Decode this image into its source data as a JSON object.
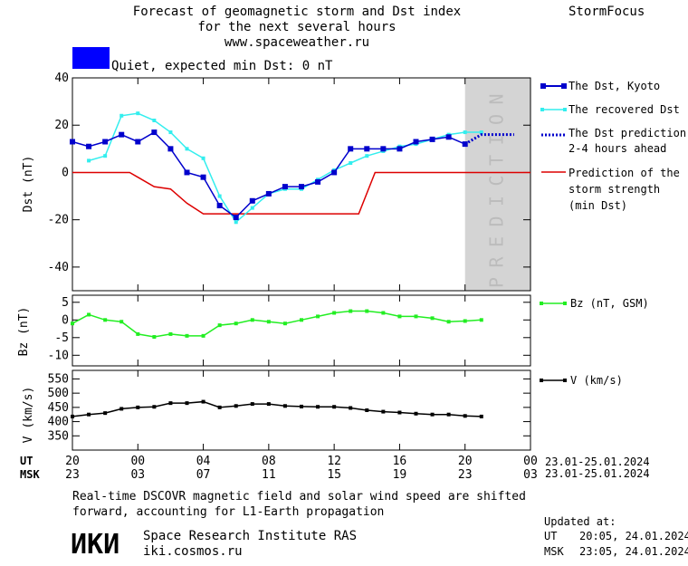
{
  "header": {
    "title_lines": [
      "Forecast of geomagnetic storm and Dst index",
      "for the next several hours",
      "www.spaceweather.ru"
    ],
    "brand": "StormFocus",
    "status_text": "Quiet, expected min Dst: 0 nT"
  },
  "colors": {
    "status": "#0000ff",
    "dst_kyoto": "#0000cc",
    "dst_recovered": "#33eeee",
    "dst_prediction": "#0000cc",
    "storm_strength": "#dd0000",
    "bz": "#22ee22",
    "speed": "#000000",
    "prediction_zone": "#d4d4d4"
  },
  "legend": {
    "dst_kyoto": "The Dst, Kyoto",
    "dst_recovered": "The recovered Dst",
    "dst_prediction": [
      "The Dst prediction",
      "2-4 hours ahead"
    ],
    "storm_strength": [
      "Prediction of the",
      "storm strength",
      "(min Dst)"
    ],
    "bz": "Bz (nT, GSM)",
    "speed": "V (km/s)"
  },
  "prediction_label": "PREDICTION",
  "time_axis": {
    "ut_label": "UT",
    "msk_label": "MSK",
    "ut_ticks": [
      "20",
      "00",
      "04",
      "08",
      "12",
      "16",
      "20",
      "00"
    ],
    "msk_ticks": [
      "23",
      "03",
      "07",
      "11",
      "15",
      "19",
      "23",
      "03"
    ],
    "ut_range": "23.01-25.01.2024",
    "msk_range": "23.01-25.01.2024"
  },
  "footer": {
    "note_lines": [
      "Real-time DSCOVR magnetic field and solar wind speed are shifted",
      "forward, accounting for L1-Earth propagation"
    ],
    "logo": "ИКИ",
    "institute": "Space Research Institute RAS",
    "site": "iki.cosmos.ru",
    "updated_label": "Updated at:",
    "updated_ut_label": "UT",
    "updated_ut": "20:05, 24.01.2024",
    "updated_msk_label": "MSK",
    "updated_msk": "23:05, 24.01.2024"
  },
  "chart_data": [
    {
      "type": "line",
      "ylabel": "Dst (nT)",
      "ylim": [
        -50,
        40
      ],
      "yticks": [
        40,
        20,
        0,
        -20,
        -40
      ],
      "x_unit": "hours since 20 UT, 23.01.2024",
      "xlim": [
        0,
        28
      ],
      "prediction_zone": [
        24,
        28
      ],
      "series": [
        {
          "name": "The Dst, Kyoto",
          "x": [
            0,
            1,
            2,
            3,
            4,
            5,
            6,
            7,
            8,
            9,
            10,
            11,
            12,
            13,
            14,
            15,
            16,
            17,
            18,
            19,
            20,
            21,
            22,
            23,
            24
          ],
          "values": [
            13,
            11,
            13,
            16,
            13,
            17,
            10,
            0,
            -2,
            -14,
            -19,
            -12,
            -9,
            -6,
            -6,
            -4,
            0,
            10,
            10,
            10,
            10,
            13,
            14,
            15,
            12
          ]
        },
        {
          "name": "The recovered Dst",
          "x": [
            1,
            2,
            3,
            4,
            5,
            6,
            7,
            8,
            9,
            10,
            11,
            12,
            13,
            14,
            15,
            16,
            17,
            18,
            19,
            20,
            21,
            22,
            23,
            24,
            25
          ],
          "values": [
            5,
            7,
            24,
            25,
            22,
            17,
            10,
            6,
            -10,
            -21,
            -15,
            -9,
            -7,
            -7,
            -3,
            1,
            4,
            7,
            9,
            11,
            12,
            14,
            16,
            17,
            17
          ]
        },
        {
          "name": "The Dst prediction 2-4 hours ahead",
          "x": [
            24,
            25,
            26,
            27
          ],
          "values": [
            12,
            16,
            16,
            16
          ]
        },
        {
          "name": "Prediction of the storm strength (min Dst)",
          "x": [
            0,
            3.5,
            4,
            5,
            6,
            7,
            8,
            17.5,
            18.5,
            28
          ],
          "values": [
            0,
            0,
            -2,
            -6,
            -7,
            -13,
            -17.5,
            -17.5,
            0,
            0
          ]
        }
      ]
    },
    {
      "type": "line",
      "ylabel": "Bz (nT)",
      "ylim": [
        -13,
        7
      ],
      "yticks": [
        5,
        0,
        -5,
        -10
      ],
      "series": [
        {
          "name": "Bz (nT, GSM)",
          "x": [
            0,
            1,
            2,
            3,
            4,
            5,
            6,
            7,
            8,
            9,
            10,
            11,
            12,
            13,
            14,
            15,
            16,
            17,
            18,
            19,
            20,
            21,
            22,
            23,
            24,
            25
          ],
          "values": [
            -1,
            1.5,
            0,
            -0.5,
            -4,
            -4.8,
            -4,
            -4.5,
            -4.5,
            -1.5,
            -1,
            0,
            -0.5,
            -1,
            0,
            1,
            2,
            2.5,
            2.5,
            2,
            1,
            1,
            0.5,
            -0.5,
            -0.3,
            0
          ]
        }
      ]
    },
    {
      "type": "line",
      "ylabel": "V (km/s)",
      "ylim": [
        300,
        580
      ],
      "yticks": [
        550,
        500,
        450,
        400,
        350
      ],
      "series": [
        {
          "name": "V (km/s)",
          "x": [
            0,
            1,
            2,
            3,
            4,
            5,
            6,
            7,
            8,
            9,
            10,
            11,
            12,
            13,
            14,
            15,
            16,
            17,
            18,
            19,
            20,
            21,
            22,
            23,
            24,
            25
          ],
          "values": [
            418,
            425,
            430,
            445,
            450,
            452,
            465,
            465,
            470,
            450,
            455,
            462,
            462,
            455,
            453,
            452,
            452,
            448,
            440,
            435,
            432,
            428,
            425,
            425,
            420,
            418
          ]
        }
      ]
    }
  ]
}
